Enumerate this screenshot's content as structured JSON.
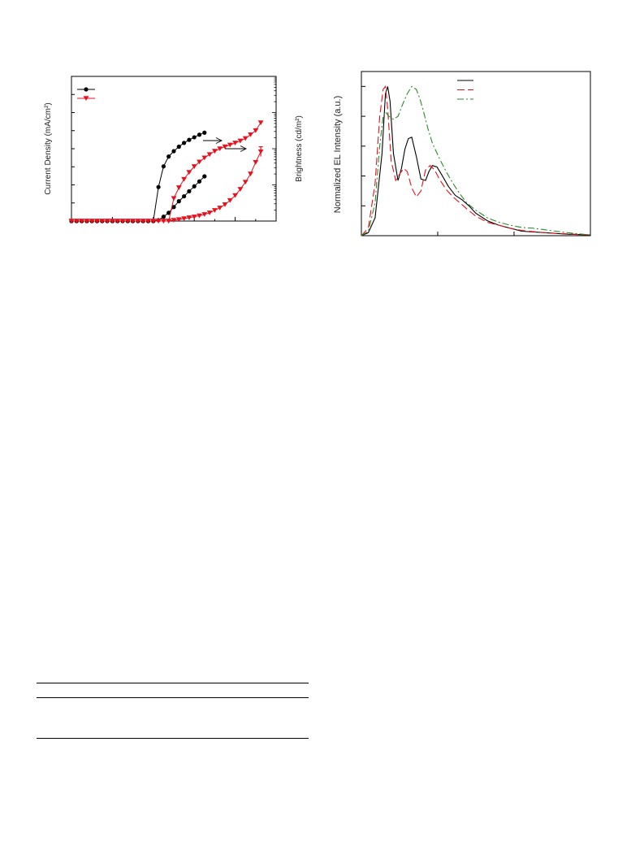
{
  "figures": [
    {
      "label_left": "Current Density (mA/cm²)",
      "label_right": "Brightness (cd/m²)"
    },
    {
      "label_left": "Normalized EL Intensity (a.u.)"
    }
  ],
  "chart_data": [
    {
      "type": "line",
      "title": "",
      "ylabel": "Current Density (mA/cm²)",
      "y2label": "Brightness (cd/m²)",
      "xlabel": "",
      "x_range": [
        0,
        10
      ],
      "y_range": [
        0,
        100
      ],
      "grid": false,
      "legend": "top-left",
      "colors": {
        "black": "#000000",
        "red": "#e8101c"
      },
      "series": [
        {
          "name": "",
          "color": "#000000",
          "marker": "circle",
          "kind": "current-density",
          "x": [
            0,
            0.25,
            0.5,
            0.75,
            1,
            1.25,
            1.5,
            1.75,
            2,
            2.25,
            2.5,
            2.75,
            3,
            3.25,
            3.5,
            3.75,
            4,
            4.25,
            4.5,
            4.75,
            5,
            5.25,
            5.5,
            5.75,
            6,
            6.25,
            6.5
          ],
          "y": [
            0,
            0,
            0,
            0,
            0,
            0,
            0,
            0,
            0,
            0,
            0,
            0,
            0,
            0,
            0,
            0,
            0,
            23.5,
            37.8,
            44.6,
            48.3,
            51.4,
            54,
            56.1,
            57.9,
            59.7,
            61.1
          ]
        },
        {
          "name": "",
          "color": "#000000",
          "marker": "circle",
          "kind": "brightness",
          "x": [
            0,
            0.25,
            0.5,
            0.75,
            1,
            1.25,
            1.5,
            1.75,
            2,
            2.25,
            2.5,
            2.75,
            3,
            3.25,
            3.5,
            3.75,
            4,
            4.25,
            4.5,
            4.75,
            5,
            5.25,
            5.5,
            5.75,
            6,
            6.25,
            6.5
          ],
          "y": [
            0,
            0,
            0,
            0,
            0,
            0,
            0,
            0,
            0,
            0,
            0,
            0,
            0,
            0,
            0,
            0,
            0,
            0.6,
            3,
            5.7,
            9.7,
            13.7,
            17.1,
            20.6,
            24,
            27.4,
            30.9
          ]
        },
        {
          "name": "",
          "color": "#e8101c",
          "marker": "triangle-down",
          "kind": "current-density",
          "x": [
            0,
            0.25,
            0.5,
            0.75,
            1,
            1.25,
            1.5,
            1.75,
            2,
            2.25,
            2.5,
            2.75,
            3,
            3.25,
            3.5,
            3.75,
            4,
            4.25,
            4.5,
            4.75,
            5,
            5.25,
            5.5,
            5.75,
            6,
            6.25,
            6.5,
            6.75,
            7,
            7.25,
            7.5,
            7.75,
            8,
            8.25,
            8.5,
            8.75,
            9,
            9.25
          ],
          "y": [
            0,
            0,
            0,
            0,
            0,
            0,
            0,
            0,
            0,
            0,
            0,
            0,
            0,
            0,
            0,
            0,
            0,
            0,
            0,
            0,
            0.6,
            1.1,
            1.7,
            2.3,
            2.9,
            3.7,
            4.6,
            5.7,
            7.4,
            9.1,
            11.4,
            14.3,
            17.7,
            22,
            26.9,
            32.6,
            40.6,
            48
          ]
        },
        {
          "name": "",
          "color": "#e8101c",
          "marker": "triangle-down",
          "kind": "brightness",
          "x": [
            0,
            0.25,
            0.5,
            0.75,
            1,
            1.25,
            1.5,
            1.75,
            2,
            2.25,
            2.5,
            2.75,
            3,
            3.25,
            3.5,
            3.75,
            4,
            4.25,
            4.5,
            4.75,
            5,
            5.25,
            5.5,
            5.75,
            6,
            6.25,
            6.5,
            6.75,
            7,
            7.25,
            7.5,
            7.75,
            8,
            8.25,
            8.5,
            8.75,
            9,
            9.25
          ],
          "y": [
            0,
            0,
            0,
            0,
            0,
            0,
            0,
            0,
            0,
            0,
            0,
            0,
            0,
            0,
            0,
            0,
            0,
            0,
            0,
            0,
            15.7,
            23.1,
            28.9,
            33.7,
            37.7,
            40.9,
            43.7,
            46,
            48.3,
            50,
            51.4,
            52.6,
            54,
            55.4,
            57.1,
            59.7,
            62.6,
            68
          ]
        }
      ]
    },
    {
      "type": "line",
      "title": "",
      "ylabel": "Normalized EL Intensity (a.u.)",
      "xlabel": "",
      "x_range": [
        0,
        100
      ],
      "y_range": [
        0,
        1.1
      ],
      "grid": false,
      "legend": "top-right",
      "colors": {
        "black": "#000000",
        "red": "#e8101c",
        "green": "#2a8a2a"
      },
      "series": [
        {
          "name": "",
          "color": "#000000",
          "dash": "solid",
          "x": [
            0,
            3,
            6,
            9,
            10.5,
            11.5,
            12.5,
            14,
            16,
            17.5,
            19,
            20.5,
            22,
            24,
            26,
            28,
            29.5,
            31,
            33,
            35,
            38,
            41,
            44,
            47,
            50,
            55,
            60,
            65,
            70,
            80,
            90,
            100
          ],
          "y": [
            0,
            0.02,
            0.12,
            0.55,
            0.95,
            1.0,
            0.9,
            0.55,
            0.37,
            0.45,
            0.58,
            0.65,
            0.66,
            0.53,
            0.38,
            0.37,
            0.43,
            0.47,
            0.46,
            0.41,
            0.33,
            0.27,
            0.24,
            0.2,
            0.15,
            0.1,
            0.07,
            0.05,
            0.03,
            0.02,
            0.01,
            0.005
          ]
        },
        {
          "name": "",
          "color": "#e8101c",
          "dash": "long-dash",
          "x": [
            0,
            3,
            6,
            8,
            9.5,
            10.5,
            11.5,
            13,
            15,
            17,
            18.5,
            20,
            22,
            24,
            26,
            28,
            30,
            32,
            34,
            37,
            40,
            43,
            46,
            50,
            55,
            60,
            65,
            70,
            80,
            90,
            100
          ],
          "y": [
            0,
            0.05,
            0.35,
            0.8,
            0.98,
            1.0,
            0.85,
            0.5,
            0.37,
            0.42,
            0.45,
            0.43,
            0.32,
            0.26,
            0.3,
            0.44,
            0.47,
            0.44,
            0.38,
            0.31,
            0.26,
            0.22,
            0.18,
            0.13,
            0.09,
            0.07,
            0.05,
            0.035,
            0.02,
            0.012,
            0.005
          ]
        },
        {
          "name": "",
          "color": "#2a8a2a",
          "dash": "dash-dot",
          "x": [
            0,
            3,
            6,
            8,
            9.5,
            10.5,
            12,
            14,
            16,
            18,
            20,
            22,
            24,
            25.5,
            27,
            29,
            31,
            34,
            37,
            40,
            43,
            46,
            50,
            55,
            60,
            65,
            70,
            75,
            80,
            85,
            90,
            95,
            100
          ],
          "y": [
            0,
            0.03,
            0.22,
            0.6,
            0.8,
            0.83,
            0.8,
            0.78,
            0.8,
            0.88,
            0.95,
            1.0,
            0.98,
            0.92,
            0.84,
            0.72,
            0.62,
            0.52,
            0.43,
            0.35,
            0.28,
            0.22,
            0.17,
            0.12,
            0.09,
            0.07,
            0.055,
            0.05,
            0.04,
            0.03,
            0.02,
            0.012,
            0.005
          ]
        }
      ]
    }
  ]
}
